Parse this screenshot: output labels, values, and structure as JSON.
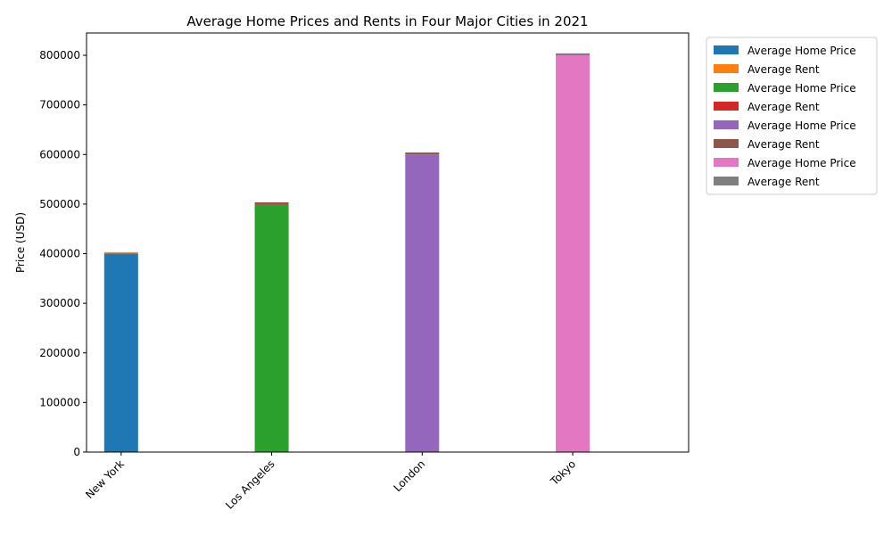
{
  "chart_data": {
    "type": "bar",
    "title": "Average Home Prices and Rents in Four Major Cities in 2021",
    "xlabel": "",
    "ylabel": "Price (USD)",
    "ylim": [
      0,
      845000
    ],
    "yticks": [
      0,
      100000,
      200000,
      300000,
      400000,
      500000,
      600000,
      700000,
      800000
    ],
    "categories": [
      "New York",
      "Los Angeles",
      "London",
      "Tokyo"
    ],
    "stacked": true,
    "groups": [
      {
        "city": "New York",
        "home_price": 400000,
        "rent": 3000,
        "home_color": "#1f77b4",
        "rent_color": "#ff7f0e"
      },
      {
        "city": "Los Angeles",
        "home_price": 500000,
        "rent": 3500,
        "home_color": "#2ca02c",
        "rent_color": "#d62728"
      },
      {
        "city": "London",
        "home_price": 600000,
        "rent": 4000,
        "home_color": "#9467bd",
        "rent_color": "#8c564b"
      },
      {
        "city": "Tokyo",
        "home_price": 800000,
        "rent": 4000,
        "home_color": "#e377c2",
        "rent_color": "#7f7f7f"
      }
    ],
    "legend": {
      "placement": "outside-right-top",
      "entries": [
        {
          "label": "Average Home Price",
          "color": "#1f77b4"
        },
        {
          "label": "Average Rent",
          "color": "#ff7f0e"
        },
        {
          "label": "Average Home Price",
          "color": "#2ca02c"
        },
        {
          "label": "Average Rent",
          "color": "#d62728"
        },
        {
          "label": "Average Home Price",
          "color": "#9467bd"
        },
        {
          "label": "Average Rent",
          "color": "#8c564b"
        },
        {
          "label": "Average Home Price",
          "color": "#e377c2"
        },
        {
          "label": "Average Rent",
          "color": "#7f7f7f"
        }
      ]
    },
    "grid": false
  }
}
